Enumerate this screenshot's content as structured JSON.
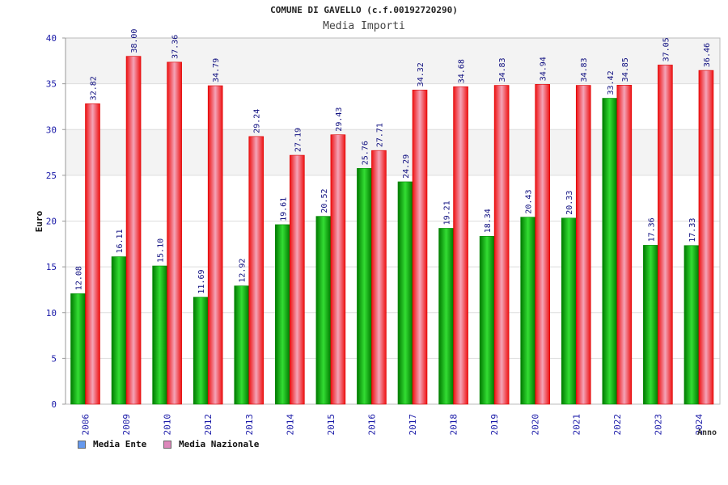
{
  "chart_data": {
    "type": "bar",
    "title": "COMUNE DI GAVELLO (c.f.00192720290)",
    "subtitle": "Media Importi",
    "ylabel": "Euro",
    "xlabel": "Anno",
    "ylim": [
      0,
      40
    ],
    "yticks": [
      0,
      5,
      10,
      15,
      20,
      25,
      30,
      35,
      40
    ],
    "grid": true,
    "legend_position": "bottom-left",
    "categories": [
      "2006",
      "2009",
      "2010",
      "2012",
      "2013",
      "2014",
      "2015",
      "2016",
      "2017",
      "2018",
      "2019",
      "2020",
      "2021",
      "2022",
      "2023",
      "2024"
    ],
    "series": [
      {
        "name": "Media Ente",
        "color": "#00bb00",
        "legend_color": "#6699ee",
        "values": [
          12.08,
          16.11,
          15.1,
          11.69,
          12.92,
          19.61,
          20.52,
          25.76,
          24.29,
          19.21,
          18.34,
          20.43,
          20.33,
          33.42,
          17.36,
          17.33
        ],
        "labels": [
          "12.08",
          "16.11",
          "15.10",
          "11.69",
          "12.92",
          "19.61",
          "20.52",
          "25.76",
          "24.29",
          "19.21",
          "18.34",
          "20.43",
          "20.33",
          "33.42",
          "17.36",
          "17.33"
        ]
      },
      {
        "name": "Media Nazionale",
        "color": "#ee1111",
        "legend_color": "#dd88bb",
        "values": [
          32.82,
          38.0,
          37.36,
          34.79,
          29.24,
          27.19,
          29.43,
          27.71,
          34.32,
          34.68,
          34.83,
          34.94,
          34.83,
          34.85,
          37.05,
          36.46
        ],
        "labels": [
          "32.82",
          "38.00",
          "37.36",
          "34.79",
          "29.24",
          "27.19",
          "29.43",
          "27.71",
          "34.32",
          "34.68",
          "34.83",
          "34.94",
          "34.83",
          "34.85",
          "37.05",
          "36.46"
        ]
      }
    ]
  }
}
